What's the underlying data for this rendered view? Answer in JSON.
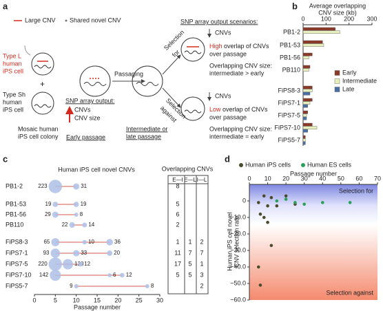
{
  "panel_a": {
    "label": "a",
    "legend": [
      "Large CNV",
      "Shared novel CNV"
    ],
    "type_l": [
      "Type L",
      "human",
      "iPS cell"
    ],
    "type_sh": [
      "Type Sh",
      "human",
      "iPS cell"
    ],
    "colony": [
      "Mosaic human",
      "iPS cell colony"
    ],
    "passaging": "Passaging",
    "snp_output": "SNP array output:",
    "cnvs": "CNVs",
    "cnv_size": "CNV size",
    "early": "Early passage",
    "selection_for": [
      "Selection",
      "for"
    ],
    "selection_against": [
      "Selection",
      "against"
    ],
    "scenarios": "SNP array output scenarios:",
    "for_cnvs": "CNVs",
    "for_overlap": [
      "High",
      "overlap of CNVs",
      "over passage"
    ],
    "for_size": [
      "Overlapping CNV size:",
      "intermediate > early"
    ],
    "against_cnvs": "CNVs",
    "against_overlap": [
      "Low",
      "overlap of CNVs",
      "over passage"
    ],
    "against_size": [
      "Overlapping CNV size:",
      "intermediate = early"
    ],
    "late": [
      "Intermediate or",
      "late passage"
    ]
  },
  "panel_b": {
    "label": "b",
    "title": [
      "Average overlapping",
      "CNV size (kb)"
    ],
    "categories": [
      "PB1-2",
      "PB1-53",
      "PB1-56",
      "PB110",
      "FiPS8-3",
      "FiPS7-1",
      "FiPS7-5",
      "FiPS7-10",
      "FiPS5-7"
    ],
    "series": [
      {
        "name": "Early",
        "color": "#8b3a2a",
        "values": [
          140,
          85,
          40,
          30,
          40,
          40,
          20,
          40,
          10
        ]
      },
      {
        "name": "Intermediate",
        "color": "#e6efbd",
        "values": [
          160,
          90,
          25,
          25,
          40,
          30,
          15,
          60,
          10
        ]
      },
      {
        "name": "Late",
        "color": "#4a6fa5",
        "values": [
          null,
          null,
          null,
          null,
          30,
          20,
          15,
          20,
          10
        ]
      }
    ],
    "xlim": [
      0,
      300
    ],
    "xticks": [
      0,
      100,
      200,
      300
    ]
  },
  "panel_c": {
    "label": "c",
    "title": "Human iPS cell novel CNVs",
    "xlabel": "Passage number",
    "xlim": [
      0,
      30
    ],
    "xticks": [
      0,
      5,
      10,
      15,
      20,
      25,
      30
    ],
    "table_title": "Overlapping CNVs",
    "table_headers": [
      "E—I",
      "E—L",
      "I—L"
    ],
    "rows": [
      {
        "name": "PB1-2",
        "points": [
          {
            "passage": 5,
            "count": 223
          },
          {
            "passage": 10,
            "count": 31
          }
        ],
        "overlap": [
          8,
          null,
          null
        ]
      },
      {
        "name": "PB1-53",
        "points": [
          {
            "passage": 5,
            "count": 19
          },
          {
            "passage": 10,
            "count": 19
          }
        ],
        "overlap": [
          5,
          null,
          null
        ]
      },
      {
        "name": "PB1-56",
        "points": [
          {
            "passage": 5,
            "count": 29
          },
          {
            "passage": 10,
            "count": 8
          }
        ],
        "overlap": [
          6,
          null,
          null
        ]
      },
      {
        "name": "PB110",
        "points": [
          {
            "passage": 9,
            "count": 22
          },
          {
            "passage": 12,
            "count": 14
          }
        ],
        "overlap": [
          2,
          null,
          null
        ]
      },
      {
        "name": "FiPS8-3",
        "points": [
          {
            "passage": 5,
            "count": 65
          },
          {
            "passage": 12,
            "count": 10
          },
          {
            "passage": 18,
            "count": 36
          }
        ],
        "overlap": [
          1,
          1,
          2
        ]
      },
      {
        "name": "FiPS7-1",
        "points": [
          {
            "passage": 5,
            "count": 93
          },
          {
            "passage": 10,
            "count": 33
          },
          {
            "passage": 18,
            "count": 20
          }
        ],
        "overlap": [
          11,
          7,
          7
        ]
      },
      {
        "name": "FiPS7-5",
        "points": [
          {
            "passage": 5,
            "count": 220
          },
          {
            "passage": 8,
            "count": 120
          },
          {
            "passage": 11,
            "count": 12
          }
        ],
        "overlap": [
          17,
          5,
          1
        ]
      },
      {
        "name": "FiPS7-10",
        "points": [
          {
            "passage": 5,
            "count": 142
          },
          {
            "passage": 18,
            "count": 6
          },
          {
            "passage": 21,
            "count": 12
          }
        ],
        "overlap": [
          5,
          5,
          3
        ]
      },
      {
        "name": "FiPS5-7",
        "points": [
          {
            "passage": 10,
            "count": 9
          },
          {
            "passage": 27,
            "count": 8
          }
        ],
        "overlap": [
          null,
          null,
          2
        ]
      }
    ]
  },
  "panel_d": {
    "label": "d",
    "xlabel": "Passage number",
    "ylabel": [
      "Human iPS cell novel",
      "CNV selection rate"
    ],
    "xlim": [
      0,
      70
    ],
    "xticks": [
      0,
      10,
      20,
      30,
      40,
      50,
      60,
      70
    ],
    "ylim": [
      -60,
      10
    ],
    "yticks": [
      {
        "value": 0,
        "label": "0"
      },
      {
        "value": -10,
        "label": "−10.0"
      },
      {
        "value": -20,
        "label": "−20.0"
      },
      {
        "value": -30,
        "label": "−30.0"
      },
      {
        "value": -40,
        "label": "−40.0"
      },
      {
        "value": -50,
        "label": "−50.0"
      },
      {
        "value": -60,
        "label": "−60.0"
      }
    ],
    "annotations": [
      "Selection for",
      "Selection against"
    ],
    "series": [
      {
        "name": "Human iPS cells",
        "color": "#4b4b2c",
        "x": [
          5,
          8,
          12,
          20,
          10,
          15,
          25,
          6,
          8,
          10,
          12,
          5,
          6
        ],
        "y": [
          -1,
          3,
          2,
          3,
          -3,
          -3,
          -2,
          -8,
          -10,
          -13,
          -27,
          -40,
          -51
        ]
      },
      {
        "name": "Human ES cells",
        "color": "#2ca05a",
        "x": [
          15,
          20,
          25,
          30,
          40,
          55
        ],
        "y": [
          0,
          1,
          -1,
          -2,
          -1,
          -1
        ]
      }
    ]
  }
}
